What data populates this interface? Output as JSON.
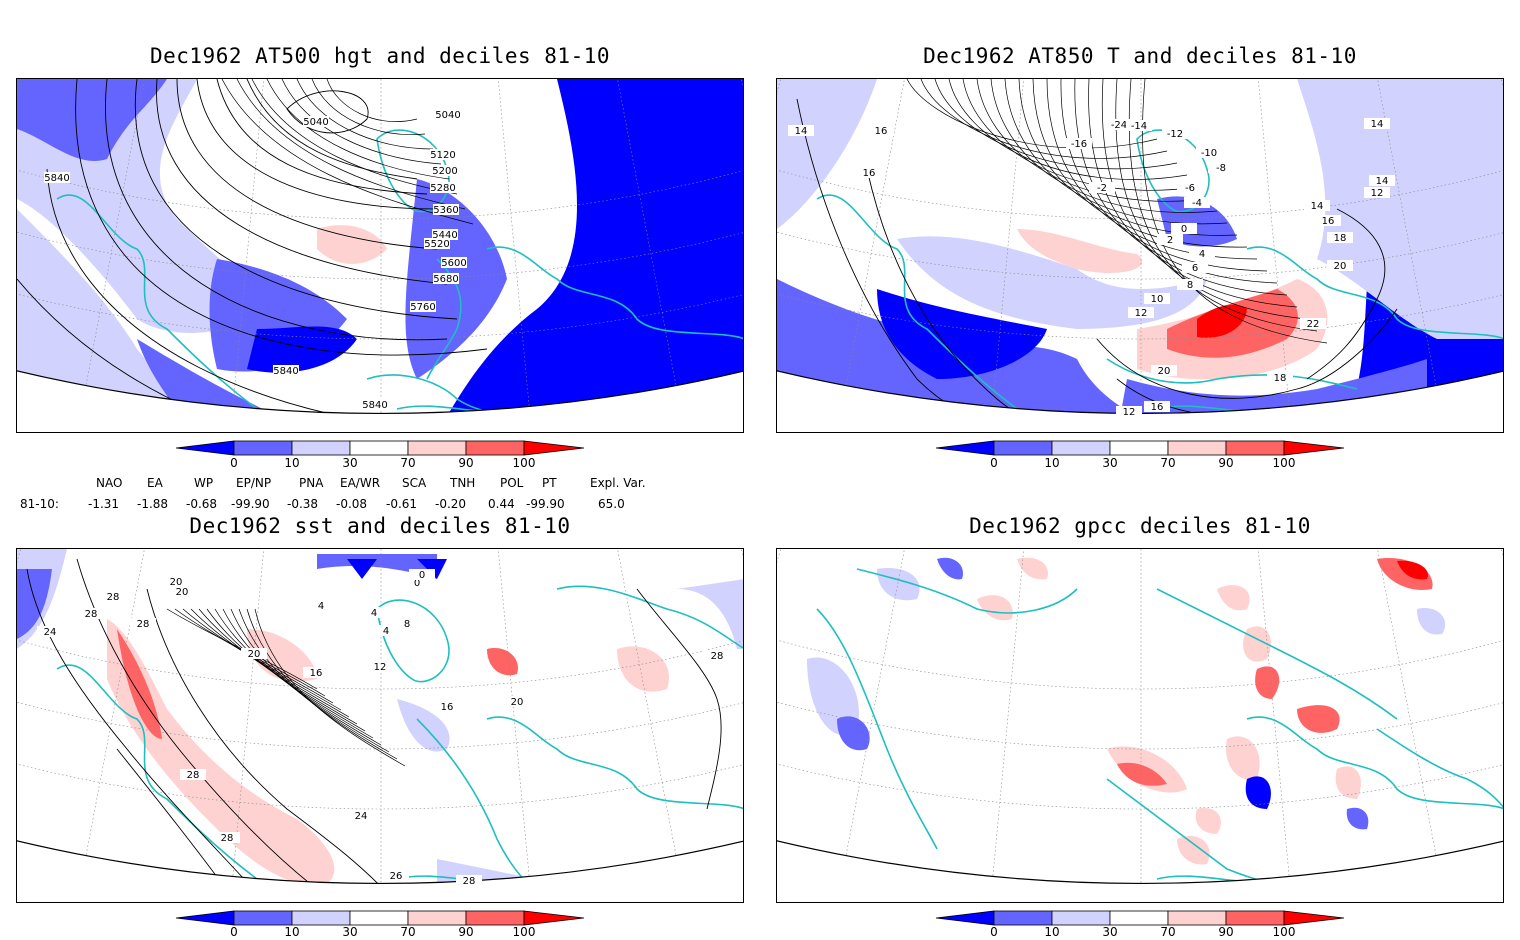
{
  "panels": [
    {
      "title": "Dec1962 AT500 hgt and deciles 81-10",
      "contour_labels": [
        "5040",
        "5040",
        "5120",
        "5200",
        "5280",
        "5360",
        "5440",
        "5520",
        "5600",
        "5680",
        "5760",
        "5840",
        "5840",
        "5840"
      ]
    },
    {
      "title": "Dec1962 AT850 T and deciles 81-10",
      "contour_labels": [
        "14",
        "16",
        "16",
        "-24",
        "-16",
        "-14",
        "-12",
        "-10",
        "-8",
        "-6",
        "-4",
        "-2",
        "0",
        "2",
        "4",
        "6",
        "8",
        "10",
        "12",
        "14",
        "12",
        "14",
        "16",
        "18",
        "20",
        "22",
        "20",
        "18",
        "16",
        "14",
        "12"
      ]
    },
    {
      "title": "Dec1962 sst and deciles 81-10",
      "contour_labels": [
        "28",
        "20",
        "28",
        "24",
        "28",
        "20",
        "0",
        "4",
        "8",
        "12",
        "16",
        "20",
        "24",
        "28",
        "26",
        "28",
        "16",
        "20",
        "4",
        "0",
        "4",
        "28",
        "28"
      ]
    },
    {
      "title": "Dec1962 gpcc deciles 81-10",
      "contour_labels": []
    }
  ],
  "colorbar": {
    "labels": [
      "0",
      "10",
      "30",
      "70",
      "90",
      "100"
    ],
    "colors": [
      "#0000ff",
      "#6464ff",
      "#d2d2ff",
      "#ffffff",
      "#ffd2d2",
      "#ff6464",
      "#ff0000"
    ]
  },
  "indices": {
    "headers": [
      "NAO",
      "EA",
      "WP",
      "EP/NP",
      "PNA",
      "EA/WR",
      "SCA",
      "TNH",
      "POL",
      "PT",
      "Expl. Var."
    ],
    "row_label": "81-10:",
    "values": [
      "-1.31",
      "-1.88",
      "-0.68",
      "-99.90",
      "-0.38",
      "-0.08",
      "-0.61",
      "-0.20",
      "0.44",
      "-99.90",
      "65.0"
    ]
  },
  "colors": {
    "coast": "#1fbfbf",
    "contour": "#000000"
  }
}
